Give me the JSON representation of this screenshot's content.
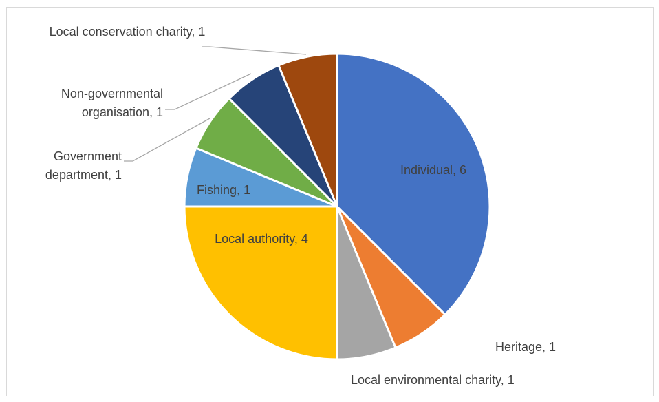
{
  "chart_data": {
    "type": "pie",
    "title": "",
    "start_angle_deg": 0,
    "direction": "clockwise",
    "slices": [
      {
        "label": "Individual",
        "value": 6,
        "color": "#4472C4"
      },
      {
        "label": "Heritage",
        "value": 1,
        "color": "#ED7D31"
      },
      {
        "label": "Local environmental charity",
        "value": 1,
        "color": "#A5A5A5"
      },
      {
        "label": "Local authority",
        "value": 4,
        "color": "#FFC000"
      },
      {
        "label": "Fishing",
        "value": 1,
        "color": "#5B9BD5"
      },
      {
        "label": "Government department",
        "value": 1,
        "color": "#70AD47"
      },
      {
        "label": "Non-governmental organisation",
        "value": 1,
        "color": "#264478"
      },
      {
        "label": "Local conservation charity",
        "value": 1,
        "color": "#9E480E"
      }
    ],
    "data_labels": [
      {
        "lines": [
          "Individual, 6"
        ]
      },
      {
        "lines": [
          "Heritage, 1"
        ]
      },
      {
        "lines": [
          "Local environmental charity, 1"
        ]
      },
      {
        "lines": [
          "Local authority, 4"
        ]
      },
      {
        "lines": [
          "Fishing, 1"
        ]
      },
      {
        "lines": [
          "Government",
          "department, 1"
        ]
      },
      {
        "lines": [
          "Non-governmental",
          "organisation, 1"
        ]
      },
      {
        "lines": [
          "Local conservation charity, 1"
        ]
      }
    ],
    "legend": "none"
  }
}
